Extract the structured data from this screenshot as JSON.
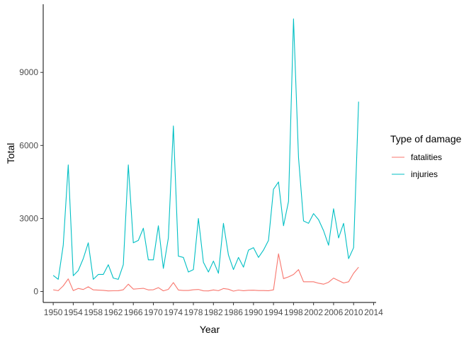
{
  "chart_data": {
    "type": "line",
    "xlabel": "Year",
    "ylabel": "Total",
    "xlim": [
      1948.0,
      2014.5
    ],
    "ylim": [
      -450,
      11800
    ],
    "x_ticks": [
      1950,
      1954,
      1958,
      1962,
      1966,
      1970,
      1974,
      1978,
      1982,
      1986,
      1990,
      1994,
      1998,
      2002,
      2006,
      2010,
      2014
    ],
    "y_ticks": [
      0,
      3000,
      6000,
      9000
    ],
    "grid": false,
    "legend": {
      "title": "Type of damage",
      "position": "right"
    },
    "x": [
      1950,
      1951,
      1952,
      1953,
      1954,
      1955,
      1956,
      1957,
      1958,
      1959,
      1960,
      1961,
      1962,
      1963,
      1964,
      1965,
      1966,
      1967,
      1968,
      1969,
      1970,
      1971,
      1972,
      1973,
      1974,
      1975,
      1976,
      1977,
      1978,
      1979,
      1980,
      1981,
      1982,
      1983,
      1984,
      1985,
      1986,
      1987,
      1988,
      1989,
      1990,
      1991,
      1992,
      1993,
      1994,
      1995,
      1996,
      1997,
      1998,
      1999,
      2000,
      2001,
      2002,
      2003,
      2004,
      2005,
      2006,
      2007,
      2008,
      2009,
      2010,
      2011
    ],
    "series": [
      {
        "name": "fatalities",
        "color": "#F8766D",
        "values": [
          70,
          34,
          230,
          519,
          36,
          126,
          83,
          193,
          67,
          58,
          46,
          25,
          30,
          31,
          73,
          301,
          98,
          114,
          131,
          66,
          73,
          159,
          27,
          89,
          366,
          60,
          44,
          43,
          72,
          84,
          28,
          24,
          64,
          34,
          122,
          94,
          15,
          59,
          32,
          50,
          53,
          39,
          39,
          33,
          69,
          1550,
          530,
          600,
          700,
          900,
          400,
          400,
          400,
          340,
          300,
          380,
          550,
          450,
          350,
          400,
          750,
          1000
        ]
      },
      {
        "name": "injuries",
        "color": "#00BFC4",
        "values": [
          660,
          500,
          1900,
          5200,
          650,
          860,
          1350,
          2000,
          500,
          700,
          700,
          1100,
          550,
          500,
          1100,
          5200,
          2000,
          2100,
          2600,
          1300,
          1300,
          2700,
          950,
          2200,
          6800,
          1450,
          1400,
          800,
          900,
          3000,
          1200,
          800,
          1250,
          750,
          2800,
          1500,
          900,
          1400,
          1000,
          1700,
          1800,
          1400,
          1700,
          2100,
          4200,
          4500,
          2700,
          3700,
          11200,
          5500,
          2900,
          2800,
          3200,
          2950,
          2500,
          1900,
          3400,
          2200,
          2800,
          1350,
          1800,
          7800
        ]
      }
    ]
  }
}
